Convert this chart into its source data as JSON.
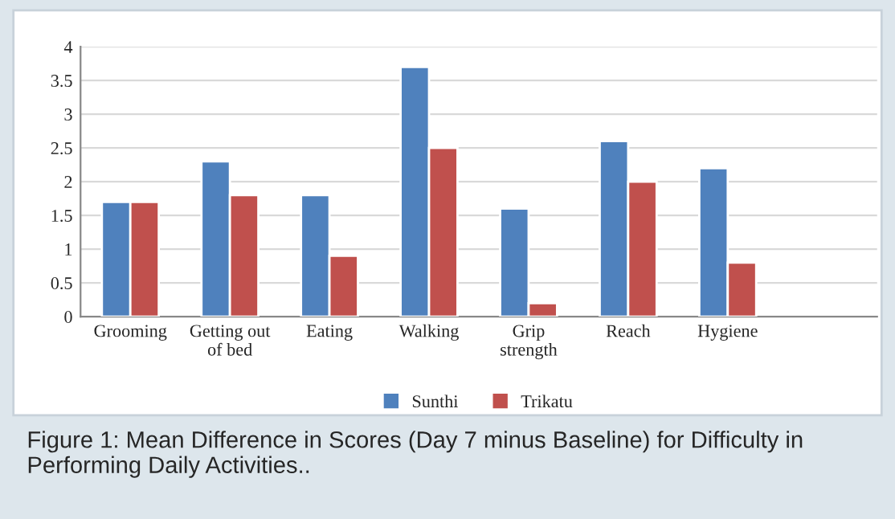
{
  "chart_data": {
    "type": "bar",
    "categories": [
      "Grooming",
      "Getting out\nof bed",
      "Eating",
      "Walking",
      "Grip\nstrength",
      "Reach",
      "Hygiene"
    ],
    "series": [
      {
        "name": "Sunthi",
        "color": "#4f81bd",
        "values": [
          1.7,
          2.3,
          1.8,
          3.7,
          1.6,
          2.6,
          2.2
        ]
      },
      {
        "name": "Trikatu",
        "color": "#c0504d",
        "values": [
          1.7,
          1.8,
          0.9,
          2.5,
          0.2,
          2.0,
          0.8
        ]
      }
    ],
    "ylim": [
      0,
      4
    ],
    "yticks": [
      0,
      0.5,
      1,
      1.5,
      2,
      2.5,
      3,
      3.5,
      4
    ],
    "grid": "y",
    "legend": "bottom",
    "annotations": [
      "Figure 1: Mean Difference in Scores (Day 7 minus Baseline) for Difficulty in Performing Daily Activities.."
    ]
  }
}
